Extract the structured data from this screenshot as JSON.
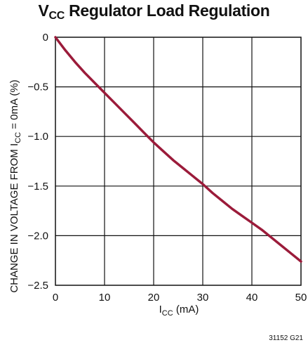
{
  "chart_data": {
    "type": "line",
    "title": {
      "main": "V",
      "sub": "CC",
      "rest": " Regulator Load Regulation"
    },
    "xlabel": {
      "main": "I",
      "sub": "CC",
      "rest": " (mA)"
    },
    "ylabel": {
      "main": "CHANGE IN VOLTAGE FROM I",
      "sub": "CC",
      "rest": " = 0mA (%)"
    },
    "xlim": [
      0,
      50
    ],
    "ylim": [
      -2.5,
      0
    ],
    "xticks": [
      0,
      10,
      20,
      30,
      40,
      50
    ],
    "yticks": [
      0,
      -0.5,
      -1.0,
      -1.5,
      -2.0,
      -2.5
    ],
    "xtick_labels": [
      "0",
      "10",
      "20",
      "30",
      "40",
      "50"
    ],
    "ytick_labels": [
      "0",
      "−0.5",
      "−1.0",
      "−1.5",
      "−2.0",
      "−2.5"
    ],
    "grid": true,
    "line_color": "#9b1b3a",
    "series": [
      {
        "x": [
          0,
          2,
          4,
          6,
          8,
          10,
          12,
          14,
          16,
          18,
          20,
          22,
          24,
          26,
          28,
          30,
          32,
          34,
          36,
          38,
          40,
          42,
          44,
          46,
          48,
          50
        ],
        "values": [
          0,
          -0.13,
          -0.25,
          -0.36,
          -0.46,
          -0.56,
          -0.66,
          -0.76,
          -0.86,
          -0.96,
          -1.06,
          -1.15,
          -1.24,
          -1.32,
          -1.4,
          -1.48,
          -1.57,
          -1.65,
          -1.73,
          -1.8,
          -1.87,
          -1.94,
          -2.02,
          -2.1,
          -2.18,
          -2.26
        ]
      }
    ],
    "figure_code": "31152 G21"
  }
}
